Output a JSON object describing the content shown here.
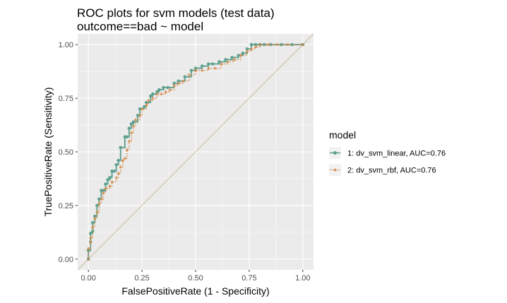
{
  "chart_data": {
    "type": "line",
    "title": "ROC plots for svm models (test data)",
    "subtitle": "outcome==bad ~ model",
    "xlabel": "FalsePositiveRate (1 - Specificity)",
    "ylabel": "TruePositiveRate (Sensitivity)",
    "xlim": [
      -0.05,
      1.05
    ],
    "ylim": [
      -0.05,
      1.05
    ],
    "x_ticks": [
      "0.00",
      "0.25",
      "0.50",
      "0.75",
      "1.00"
    ],
    "y_ticks": [
      "0.00",
      "0.25",
      "0.50",
      "0.75",
      "1.00"
    ],
    "grid": true,
    "legend": {
      "title": "model",
      "placement": "right"
    },
    "diagonal_reference": true,
    "series": [
      {
        "name": "1: dv_svm_linear, AUC=0.76",
        "color": "#5a9e8c",
        "marker": "circle",
        "line_style": "solid",
        "x": [
          0.0,
          0.0,
          0.01,
          0.01,
          0.02,
          0.02,
          0.03,
          0.04,
          0.05,
          0.06,
          0.07,
          0.08,
          0.09,
          0.1,
          0.11,
          0.12,
          0.13,
          0.14,
          0.15,
          0.17,
          0.18,
          0.19,
          0.2,
          0.21,
          0.23,
          0.24,
          0.26,
          0.27,
          0.29,
          0.3,
          0.32,
          0.33,
          0.35,
          0.37,
          0.4,
          0.42,
          0.45,
          0.48,
          0.5,
          0.53,
          0.56,
          0.58,
          0.61,
          0.64,
          0.67,
          0.7,
          0.72,
          0.74,
          0.76,
          0.78,
          0.8,
          0.82,
          0.85,
          0.9,
          0.95,
          1.0
        ],
        "y": [
          0.0,
          0.04,
          0.08,
          0.12,
          0.13,
          0.17,
          0.2,
          0.25,
          0.28,
          0.32,
          0.32,
          0.35,
          0.37,
          0.38,
          0.41,
          0.41,
          0.44,
          0.46,
          0.52,
          0.57,
          0.57,
          0.61,
          0.63,
          0.64,
          0.67,
          0.7,
          0.71,
          0.73,
          0.76,
          0.77,
          0.78,
          0.79,
          0.8,
          0.8,
          0.82,
          0.83,
          0.85,
          0.88,
          0.89,
          0.9,
          0.91,
          0.91,
          0.92,
          0.93,
          0.94,
          0.95,
          0.96,
          0.98,
          1.0,
          1.0,
          1.0,
          1.0,
          1.0,
          1.0,
          1.0,
          1.0
        ]
      },
      {
        "name": "2: dv_svm_rbf, AUC=0.76",
        "color": "#d4894a",
        "marker": "triangle",
        "line_style": "dotted",
        "x": [
          0.0,
          0.0,
          0.01,
          0.01,
          0.02,
          0.03,
          0.04,
          0.05,
          0.06,
          0.07,
          0.08,
          0.1,
          0.11,
          0.13,
          0.14,
          0.15,
          0.16,
          0.17,
          0.18,
          0.19,
          0.2,
          0.21,
          0.22,
          0.24,
          0.25,
          0.27,
          0.28,
          0.3,
          0.32,
          0.34,
          0.36,
          0.38,
          0.4,
          0.42,
          0.44,
          0.47,
          0.5,
          0.53,
          0.56,
          0.59,
          0.62,
          0.65,
          0.68,
          0.71,
          0.74,
          0.76,
          0.78,
          0.8,
          0.84,
          0.88,
          0.93,
          1.0
        ],
        "y": [
          0.0,
          0.05,
          0.08,
          0.1,
          0.15,
          0.19,
          0.22,
          0.26,
          0.28,
          0.31,
          0.33,
          0.34,
          0.36,
          0.38,
          0.4,
          0.43,
          0.46,
          0.47,
          0.51,
          0.55,
          0.59,
          0.62,
          0.65,
          0.67,
          0.7,
          0.72,
          0.74,
          0.75,
          0.77,
          0.77,
          0.78,
          0.79,
          0.81,
          0.82,
          0.83,
          0.86,
          0.88,
          0.88,
          0.89,
          0.89,
          0.91,
          0.92,
          0.93,
          0.95,
          0.97,
          0.98,
          0.99,
          1.0,
          1.0,
          1.0,
          1.0,
          1.0
        ]
      }
    ]
  }
}
